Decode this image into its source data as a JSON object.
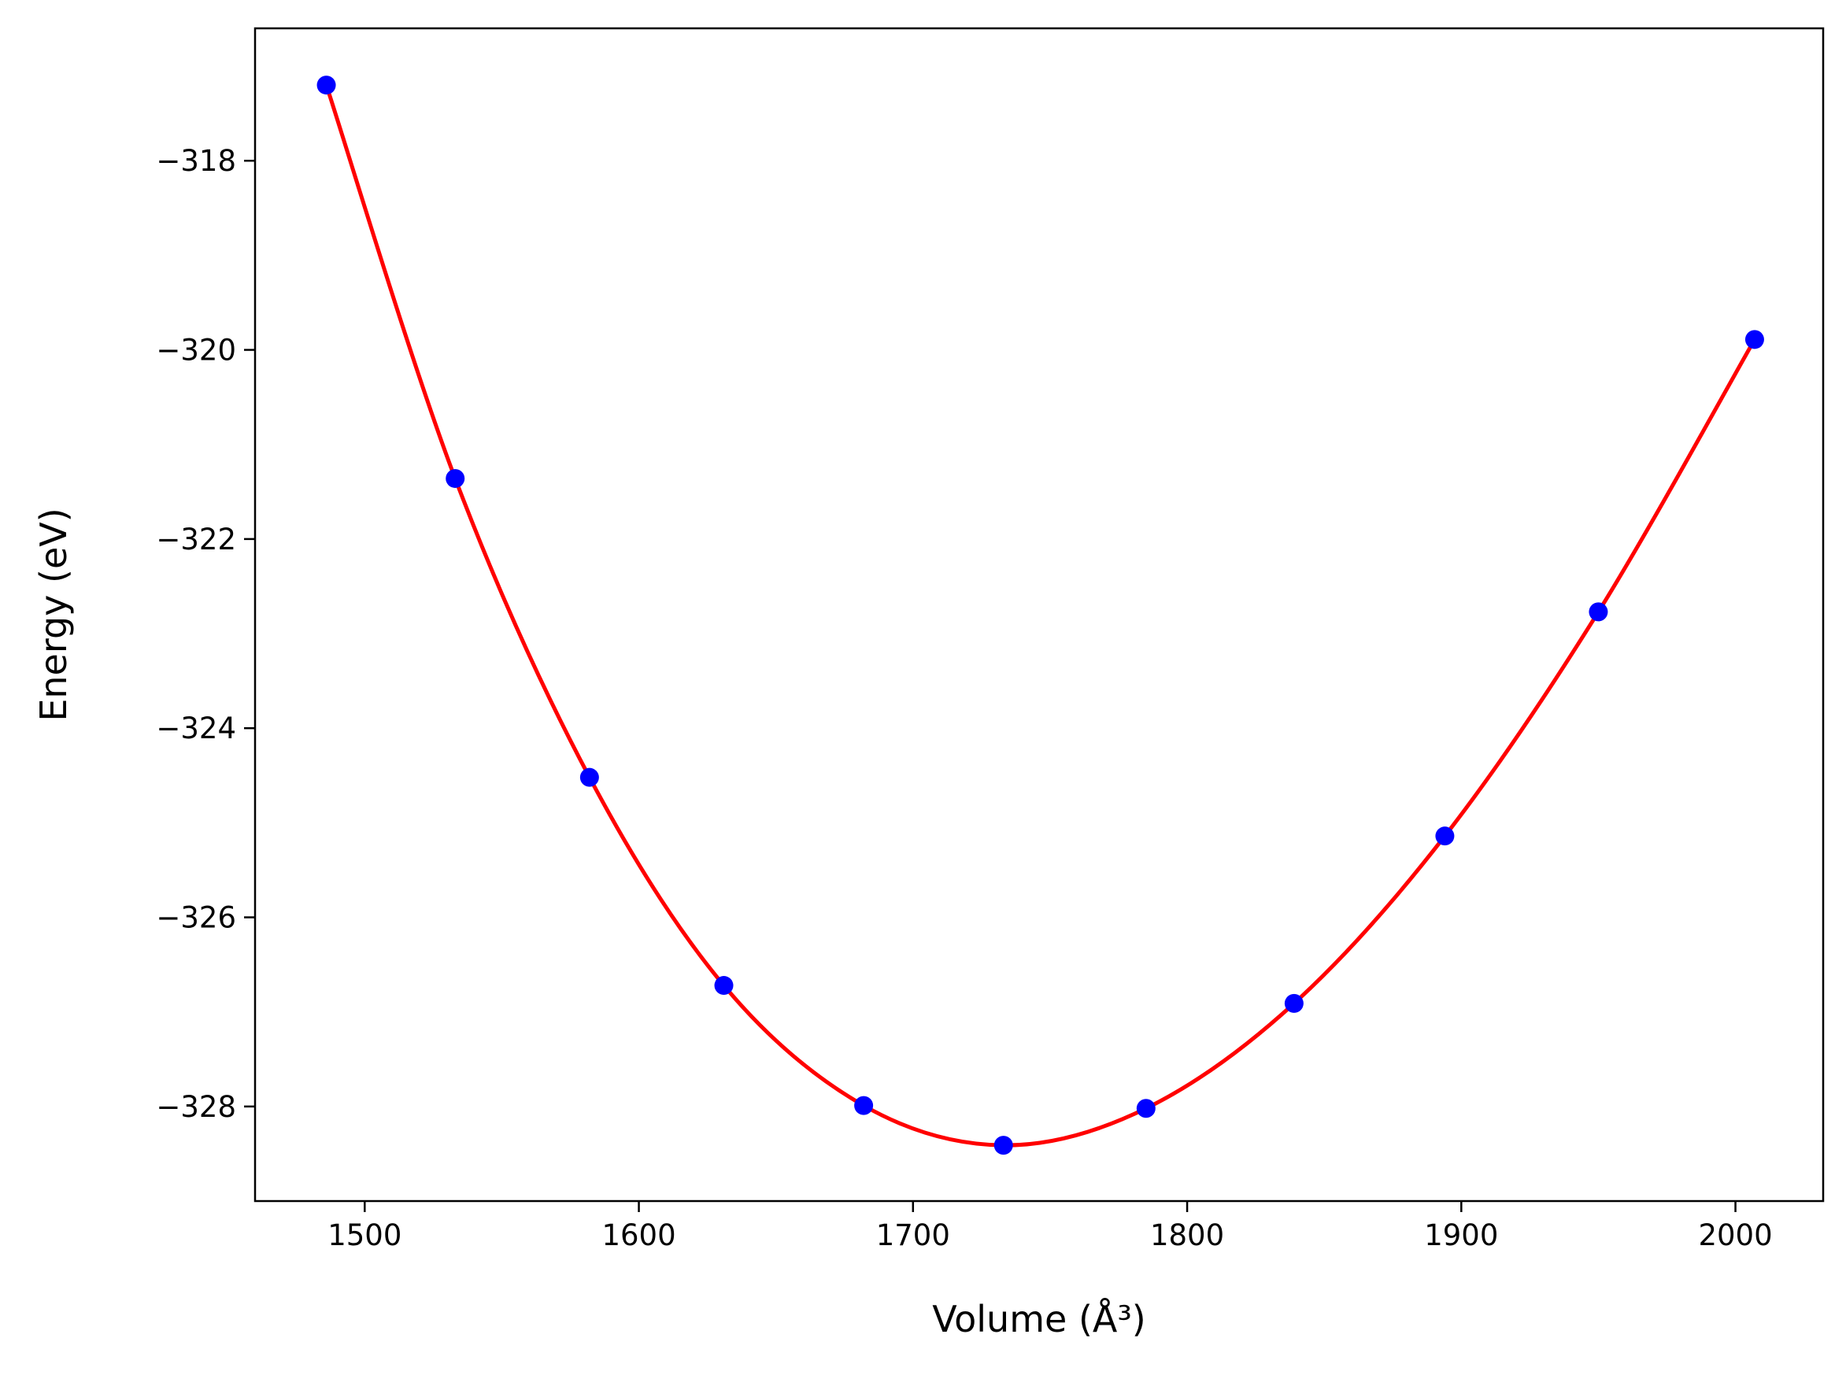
{
  "chart_data": {
    "type": "scatter",
    "title": "",
    "xlabel": "Volume (Å³)",
    "ylabel": "Energy (eV)",
    "xlim": [
      1460,
      2032
    ],
    "ylim": [
      -329.0,
      -316.6
    ],
    "xticks": [
      1500,
      1600,
      1700,
      1800,
      1900,
      2000
    ],
    "xtick_labels": [
      "1500",
      "1600",
      "1700",
      "1800",
      "1900",
      "2000"
    ],
    "yticks": [
      -318,
      -320,
      -322,
      -324,
      -326,
      -328
    ],
    "ytick_labels": [
      "−318",
      "−320",
      "−322",
      "−324",
      "−326",
      "−328"
    ],
    "grid": false,
    "legend": false,
    "series": [
      {
        "kind": "points",
        "color": "#0000ff",
        "x": [
          1486,
          1533,
          1582,
          1631,
          1682,
          1733,
          1785,
          1839,
          1894,
          1950,
          2007
        ],
        "y": [
          -317.2,
          -321.36,
          -324.52,
          -326.72,
          -327.99,
          -328.41,
          -328.02,
          -326.91,
          -325.14,
          -322.77,
          -319.89
        ]
      },
      {
        "kind": "fit-curve",
        "color": "#ff0000",
        "x": [
          1486,
          1533,
          1582,
          1631,
          1682,
          1733,
          1785,
          1839,
          1894,
          1950,
          2007
        ],
        "y": [
          -317.2,
          -321.36,
          -324.52,
          -326.72,
          -327.99,
          -328.41,
          -328.02,
          -326.91,
          -325.14,
          -322.77,
          -319.89
        ]
      }
    ]
  }
}
